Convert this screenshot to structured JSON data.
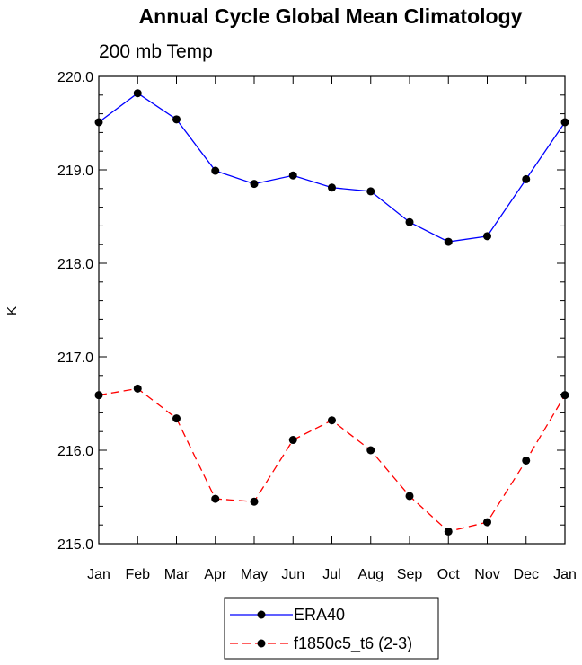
{
  "chart_data": {
    "type": "line",
    "title": "Annual Cycle Global Mean Climatology",
    "subtitle": "200 mb Temp",
    "xlabel": "",
    "ylabel": "K",
    "categories": [
      "Jan",
      "Feb",
      "Mar",
      "Apr",
      "May",
      "Jun",
      "Jul",
      "Aug",
      "Sep",
      "Oct",
      "Nov",
      "Dec",
      "Jan"
    ],
    "ylim": [
      215.0,
      220.0
    ],
    "yticks": [
      "215.0",
      "216.0",
      "217.0",
      "218.0",
      "219.0",
      "220.0"
    ],
    "grid": false,
    "legend_position": "bottom-center",
    "series": [
      {
        "name": "ERA40",
        "color": "#0000ff",
        "dash": "solid",
        "marker": "filled-circle",
        "values": [
          219.51,
          219.82,
          219.54,
          218.99,
          218.85,
          218.94,
          218.81,
          218.77,
          218.44,
          218.23,
          218.29,
          218.9,
          219.51
        ]
      },
      {
        "name": "f1850c5_t6 (2-3)",
        "color": "#ff0000",
        "dash": "dashed",
        "marker": "filled-circle",
        "values": [
          216.59,
          216.66,
          216.34,
          215.48,
          215.45,
          216.11,
          216.32,
          216.0,
          215.51,
          215.13,
          215.23,
          215.89,
          216.59
        ]
      }
    ]
  }
}
